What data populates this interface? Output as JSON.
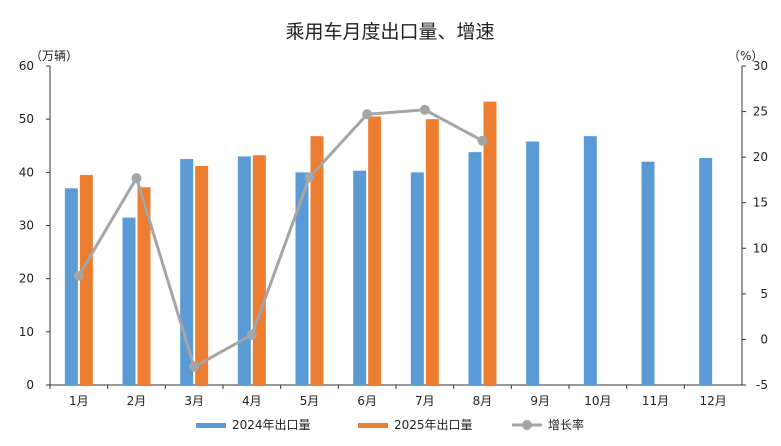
{
  "chart_data": {
    "type": "bar",
    "title": "乘用车月度出口量、增速",
    "y_left_unit": "（万辆）",
    "y_right_unit": "（%）",
    "categories": [
      "1月",
      "2月",
      "3月",
      "4月",
      "5月",
      "6月",
      "7月",
      "8月",
      "9月",
      "10月",
      "11月",
      "12月"
    ],
    "y_left_range": [
      0,
      60
    ],
    "y_left_ticks": [
      "0",
      "10",
      "20",
      "30",
      "40",
      "50",
      "60"
    ],
    "y_right_range": [
      -5,
      30
    ],
    "y_right_ticks": [
      "-5",
      "0",
      "5",
      "10",
      "15",
      "20",
      "25",
      "30"
    ],
    "series": [
      {
        "name": "2024年出口量",
        "kind": "bar",
        "axis": "left",
        "color": "#5b9bd5",
        "values": [
          37.0,
          31.5,
          42.5,
          43.0,
          40.0,
          40.3,
          40.0,
          43.8,
          45.8,
          46.8,
          42.0,
          42.7
        ]
      },
      {
        "name": "2025年出口量",
        "kind": "bar",
        "axis": "left",
        "color": "#ed7d31",
        "values": [
          39.5,
          37.2,
          41.2,
          43.2,
          46.8,
          50.5,
          50.0,
          53.3,
          null,
          null,
          null,
          null
        ]
      },
      {
        "name": "增长率",
        "kind": "line",
        "axis": "right",
        "color": "#a5a5a5",
        "values": [
          7.0,
          17.7,
          -3.0,
          0.5,
          17.8,
          24.7,
          25.2,
          21.8,
          null,
          null,
          null,
          null
        ]
      }
    ],
    "grid": false,
    "legend_position": "bottom"
  }
}
